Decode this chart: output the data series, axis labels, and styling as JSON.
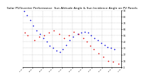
{
  "title": "Solar PV/Inverter Performance  Sun Altitude Angle & Sun Incidence Angle on PV Panels",
  "title_fontsize": 3.2,
  "background_color": "#ffffff",
  "grid_color": "#bbbbbb",
  "blue_color": "#0000dd",
  "red_color": "#dd0000",
  "ylim": [
    0,
    90
  ],
  "xlim": [
    0,
    30
  ],
  "blue_x": [
    0.3,
    1.2,
    2.2,
    3.2,
    4.2,
    5.2,
    6.2,
    7.2,
    8.2,
    9.2,
    10.2,
    11.2,
    12.2,
    13.2,
    14.2,
    15.2,
    16.8,
    17.8,
    18.8,
    19.8,
    20.8,
    21.8,
    22.8,
    23.8,
    24.8,
    25.8,
    26.8,
    27.8
  ],
  "blue_y": [
    88,
    82,
    74,
    66,
    58,
    52,
    46,
    40,
    34,
    30,
    26,
    24,
    28,
    35,
    42,
    48,
    52,
    55,
    56,
    54,
    50,
    46,
    42,
    38,
    35,
    32,
    30,
    28
  ],
  "red_x": [
    0.5,
    1.5,
    3.5,
    5.0,
    6.5,
    8.0,
    9.5,
    11.0,
    12.5,
    14.0,
    15.5,
    17.0,
    18.5,
    19.5,
    20.5,
    21.5,
    23.0,
    24.5,
    26.0,
    27.5,
    29.0
  ],
  "red_y": [
    55,
    50,
    42,
    48,
    50,
    54,
    58,
    52,
    46,
    50,
    56,
    52,
    46,
    40,
    34,
    28,
    22,
    16,
    10,
    8,
    5
  ],
  "yticks": [
    0,
    10,
    20,
    30,
    40,
    50,
    60,
    70,
    80,
    90
  ],
  "ytick_labels": [
    "0",
    "10",
    "20",
    "30",
    "40",
    "50",
    "60",
    "70",
    "80",
    "90"
  ],
  "xtick_labels": [
    "07:18",
    "08:18",
    "09:18",
    "10:18",
    "11:18",
    "12:18",
    "13:18",
    "14:18",
    "15:18",
    "16:18",
    "17:18"
  ],
  "xtick_positions": [
    0,
    3,
    6,
    9,
    12,
    15,
    18,
    21,
    24,
    27,
    30
  ],
  "marker_size": 1.5
}
